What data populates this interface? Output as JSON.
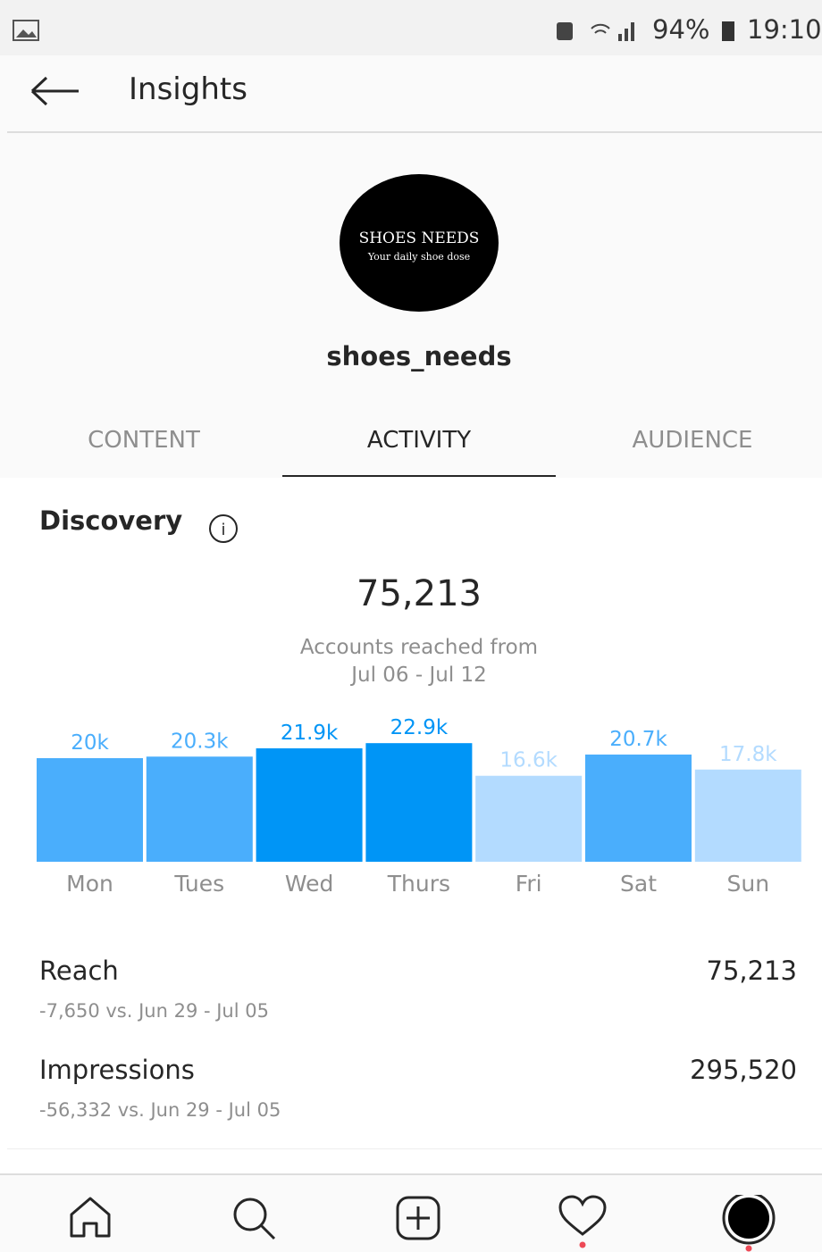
{
  "status_bar": {
    "battery": "94%",
    "time": "19:10"
  },
  "header": {
    "title": "Insights"
  },
  "profile": {
    "avatar_title": "SHOES NEEDS",
    "avatar_tagline": "Your daily shoe dose",
    "username": "shoes_needs"
  },
  "tabs": [
    "CONTENT",
    "ACTIVITY",
    "AUDIENCE"
  ],
  "section": {
    "title": "Discovery",
    "total": "75,213",
    "caption_line1": "Accounts reached from",
    "caption_line2": "Jul 06 - Jul 12"
  },
  "chart_data": {
    "type": "bar",
    "categories": [
      "Mon",
      "Tues",
      "Wed",
      "Thurs",
      "Fri",
      "Sat",
      "Sun"
    ],
    "values": [
      20000,
      20300,
      21900,
      22900,
      16600,
      20700,
      17800
    ],
    "value_labels": [
      "20k",
      "20.3k",
      "21.9k",
      "22.9k",
      "16.6k",
      "20.7k",
      "17.8k"
    ],
    "colors": [
      "#4aaefc",
      "#4aaefc",
      "#0095f6",
      "#0095f6",
      "#b3dbff",
      "#4aaefc",
      "#b3dbff"
    ]
  },
  "metrics": [
    {
      "label": "Reach",
      "value": "75,213",
      "comparison": "-7,650 vs. Jun 29 - Jul 05"
    },
    {
      "label": "Impressions",
      "value": "295,520",
      "comparison": "-56,332 vs. Jun 29 - Jul 05"
    }
  ]
}
